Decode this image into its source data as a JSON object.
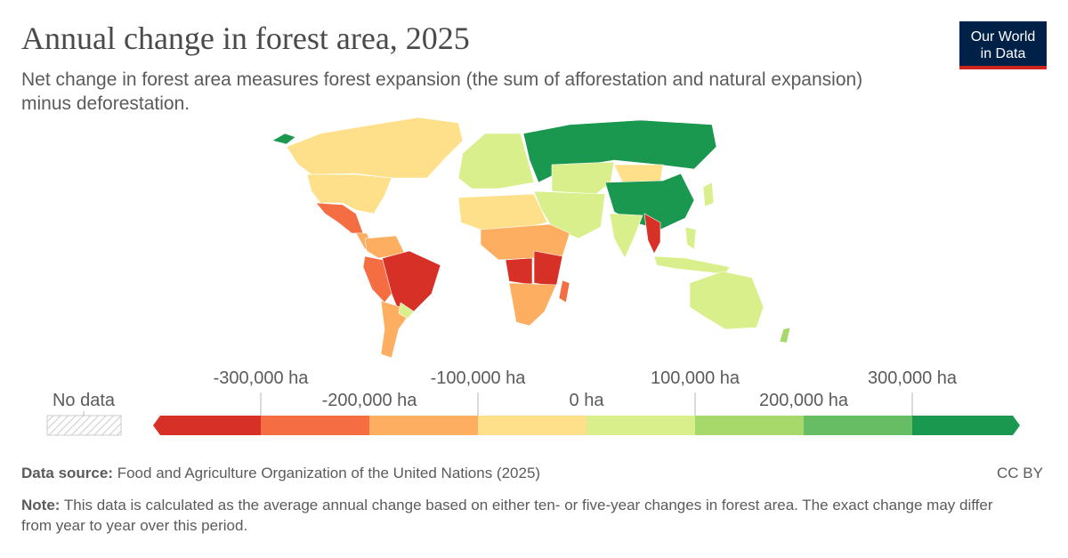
{
  "title": "Annual change in forest area, 2025",
  "subtitle": "Net change in forest area measures forest expansion (the sum of afforestation and natural expansion) minus deforestation.",
  "logo": {
    "line1": "Our World",
    "line2": "in Data"
  },
  "legend": {
    "no_data_label": "No data",
    "ticks": [
      "-300,000 ha",
      "-200,000 ha",
      "-100,000 ha",
      "0 ha",
      "100,000 ha",
      "200,000 ha",
      "300,000 ha"
    ],
    "colors": [
      "#d73027",
      "#f46d43",
      "#fdae61",
      "#fee08b",
      "#d9ef8b",
      "#a6d96a",
      "#66bd63",
      "#1a9850"
    ]
  },
  "footer": {
    "source_label": "Data source:",
    "source": "Food and Agriculture Organization of the United Nations (2025)",
    "license": "CC BY",
    "note_label": "Note:",
    "note": "This data is calculated as the average annual change based on either ten- or five-year changes in forest area. The exact change may differ from year to year over this period."
  }
}
